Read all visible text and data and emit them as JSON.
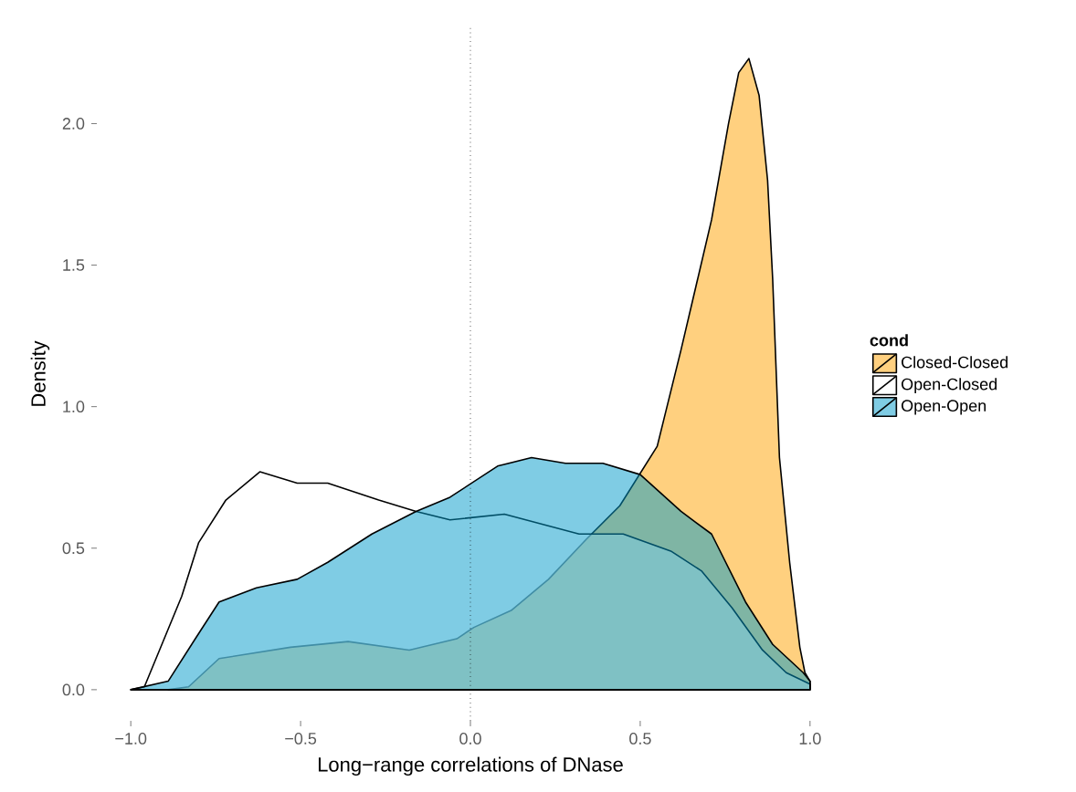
{
  "chart_data": {
    "type": "area",
    "xlabel": "Long−range correlations of DNase",
    "ylabel": "Density",
    "legend_title": "cond",
    "legend": "right",
    "xlim": [
      -1.0,
      1.0
    ],
    "ylim": [
      -0.11,
      2.34
    ],
    "xticks": [
      {
        "value": -1,
        "label": "−1.0"
      },
      {
        "value": -0.5,
        "label": "−0.5"
      },
      {
        "value": 0,
        "label": "0.0"
      },
      {
        "value": 0.5,
        "label": "0.5"
      },
      {
        "value": 1,
        "label": "1.0"
      }
    ],
    "yticks": [
      {
        "value": 0,
        "label": "0.0"
      },
      {
        "value": 0.5,
        "label": "0.5"
      },
      {
        "value": 1,
        "label": "1.0"
      },
      {
        "value": 1.5,
        "label": "1.5"
      },
      {
        "value": 2,
        "label": "2.0"
      }
    ],
    "ref_lines": [
      {
        "axis": "x",
        "value": 0,
        "line_style": "dotted",
        "color": "#000000"
      }
    ],
    "series": [
      {
        "name": "Closed-Closed",
        "color": "#ffa100",
        "x": [
          -0.89,
          -0.83,
          -0.74,
          -0.53,
          -0.36,
          -0.18,
          -0.04,
          0.01,
          0.12,
          0.23,
          0.34,
          0.44,
          0.55,
          0.62,
          0.71,
          0.76,
          0.79,
          0.82,
          0.85,
          0.875,
          0.89,
          0.91,
          0.94,
          0.97,
          0.985,
          1.0
        ],
        "values": [
          0,
          0.01,
          0.11,
          0.15,
          0.17,
          0.14,
          0.18,
          0.22,
          0.28,
          0.39,
          0.53,
          0.65,
          0.86,
          1.2,
          1.66,
          2.0,
          2.18,
          2.23,
          2.1,
          1.8,
          1.45,
          0.82,
          0.45,
          0.15,
          0.06,
          0.03
        ]
      },
      {
        "name": "Open-Closed",
        "color": "#ffffff",
        "x": [
          -1.0,
          -0.96,
          -0.85,
          -0.8,
          -0.72,
          -0.62,
          -0.51,
          -0.42,
          -0.27,
          -0.16,
          -0.06,
          0.1,
          0.32,
          0.45,
          0.59,
          0.68,
          0.77,
          0.86,
          0.93,
          1.0
        ],
        "values": [
          0,
          0.01,
          0.33,
          0.52,
          0.67,
          0.77,
          0.73,
          0.73,
          0.67,
          0.63,
          0.6,
          0.62,
          0.55,
          0.55,
          0.49,
          0.42,
          0.29,
          0.14,
          0.06,
          0.02
        ]
      },
      {
        "name": "Open-Open",
        "color": "#009aca",
        "x": [
          -1.0,
          -0.89,
          -0.81,
          -0.74,
          -0.63,
          -0.51,
          -0.42,
          -0.29,
          -0.16,
          -0.06,
          0.08,
          0.18,
          0.28,
          0.39,
          0.5,
          0.62,
          0.71,
          0.81,
          0.89,
          0.98,
          1.0
        ],
        "values": [
          0,
          0.03,
          0.18,
          0.31,
          0.36,
          0.39,
          0.45,
          0.55,
          0.63,
          0.68,
          0.79,
          0.82,
          0.8,
          0.8,
          0.76,
          0.63,
          0.55,
          0.31,
          0.16,
          0.06,
          0.03
        ]
      }
    ]
  }
}
